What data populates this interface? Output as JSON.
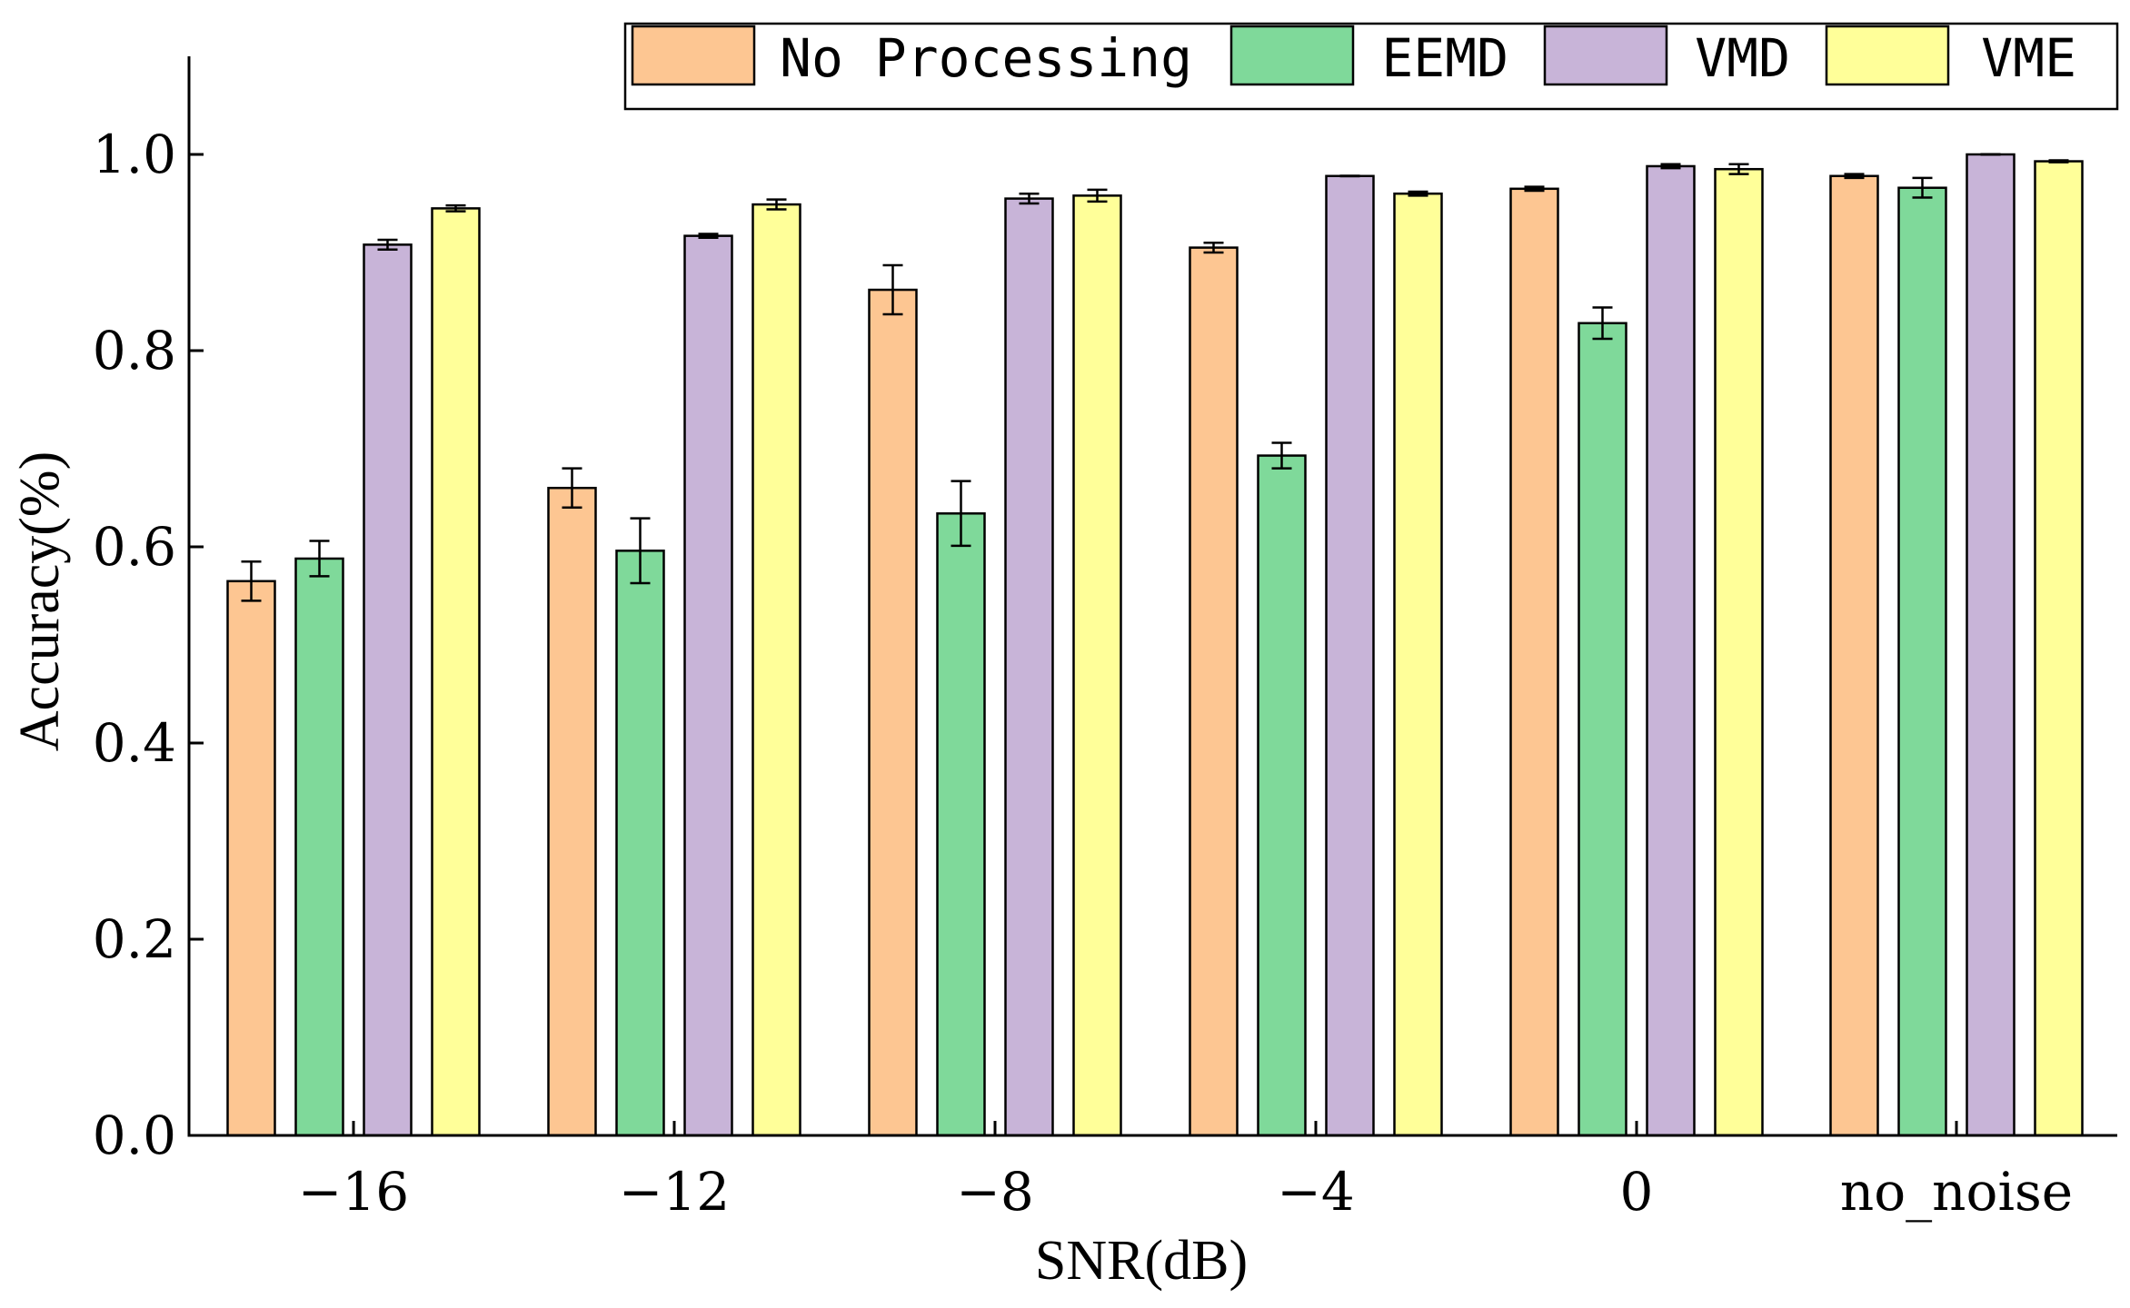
{
  "chart_data": {
    "type": "bar",
    "title": "",
    "xlabel": "SNR(dB)",
    "ylabel": "Accuracy(%)",
    "ylim": [
      0,
      1.1
    ],
    "yticks": [
      "0.0",
      "0.2",
      "0.4",
      "0.6",
      "0.8",
      "1.0"
    ],
    "categories": [
      "−16",
      "−12",
      "−8",
      "−4",
      "0",
      "no_noise"
    ],
    "series": [
      {
        "name": "No Processing",
        "color": "#FDC692",
        "values": [
          0.565,
          0.66,
          0.862,
          0.905,
          0.965,
          0.978
        ],
        "errors": [
          0.02,
          0.02,
          0.025,
          0.005,
          0.002,
          0.002
        ]
      },
      {
        "name": "EEMD",
        "color": "#7FD99A",
        "values": [
          0.588,
          0.596,
          0.634,
          0.693,
          0.828,
          0.966
        ],
        "errors": [
          0.018,
          0.033,
          0.033,
          0.013,
          0.016,
          0.01
        ]
      },
      {
        "name": "VMD",
        "color": "#C8B4D8",
        "values": [
          0.908,
          0.917,
          0.955,
          0.978,
          0.988,
          1.0
        ],
        "errors": [
          0.005,
          0.002,
          0.005,
          0.0,
          0.002,
          0.0
        ]
      },
      {
        "name": "VME",
        "color": "#FFFF99",
        "values": [
          0.945,
          0.949,
          0.958,
          0.96,
          0.985,
          0.993
        ],
        "errors": [
          0.003,
          0.005,
          0.006,
          0.002,
          0.005,
          0.001
        ]
      }
    ],
    "legend": "top-right"
  }
}
